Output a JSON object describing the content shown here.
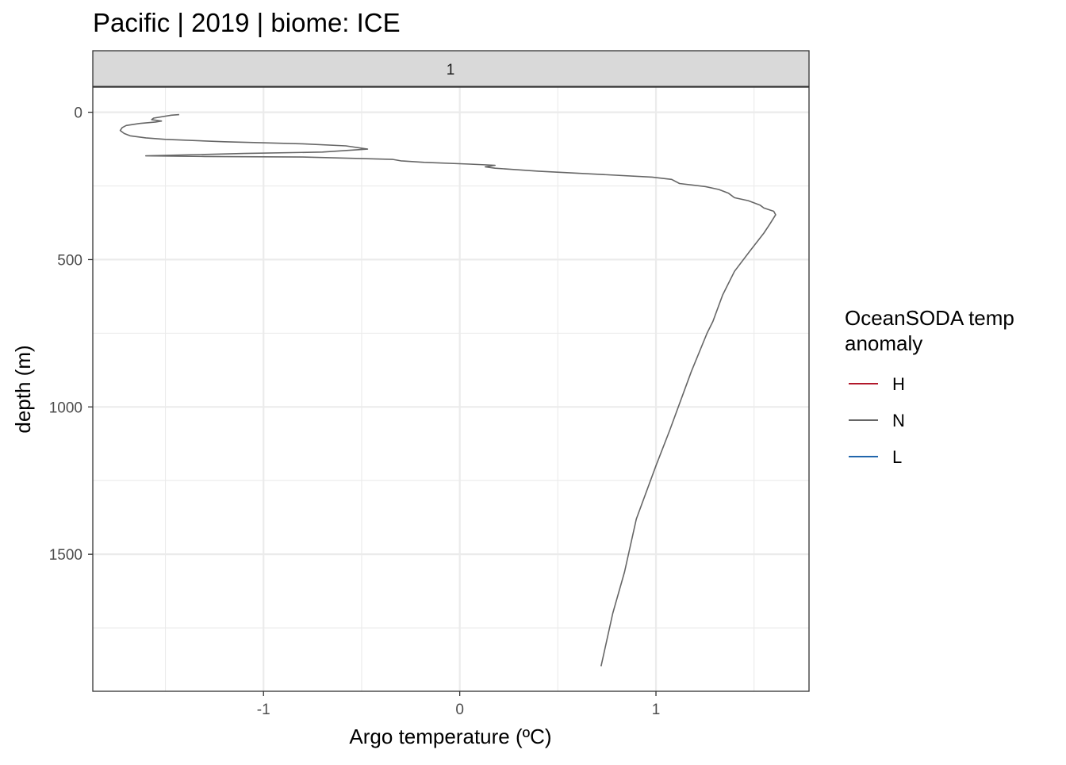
{
  "chart_data": {
    "type": "line",
    "title": "Pacific | 2019 | biome: ICE",
    "facet_label": "1",
    "xlabel": "Argo temperature (ºC)",
    "ylabel": "depth (m)",
    "xlim": [
      -1.87,
      1.78
    ],
    "ylim": [
      -85,
      1965
    ],
    "y_reversed": true,
    "grid": true,
    "x_ticks": [
      -1,
      0,
      1
    ],
    "x_tick_labels": [
      "-1",
      "0",
      "1"
    ],
    "y_ticks": [
      0,
      500,
      1000,
      1500
    ],
    "y_tick_labels": [
      "0",
      "500",
      "1000",
      "1500"
    ],
    "legend": {
      "title_lines": [
        "OceanSODA temp",
        "anomaly"
      ],
      "position": "right",
      "entries": [
        {
          "label": "H",
          "color": "#b2182b"
        },
        {
          "label": "N",
          "color": "#666666"
        },
        {
          "label": "L",
          "color": "#2166ac"
        }
      ]
    },
    "series": [
      {
        "name": "N",
        "color": "#666666",
        "points": [
          [
            -1.43,
            8
          ],
          [
            -1.47,
            10
          ],
          [
            -1.56,
            20
          ],
          [
            -1.57,
            25
          ],
          [
            -1.52,
            30
          ],
          [
            -1.55,
            33
          ],
          [
            -1.63,
            38
          ],
          [
            -1.7,
            45
          ],
          [
            -1.72,
            52
          ],
          [
            -1.73,
            62
          ],
          [
            -1.71,
            72
          ],
          [
            -1.68,
            80
          ],
          [
            -1.6,
            87
          ],
          [
            -1.5,
            92
          ],
          [
            -1.2,
            100
          ],
          [
            -0.8,
            107
          ],
          [
            -0.58,
            114
          ],
          [
            -0.47,
            125
          ],
          [
            -0.7,
            135
          ],
          [
            -1.1,
            140
          ],
          [
            -1.6,
            148
          ],
          [
            -1.3,
            150
          ],
          [
            -0.8,
            152
          ],
          [
            -0.34,
            160
          ],
          [
            -0.3,
            165
          ],
          [
            -0.18,
            170
          ],
          [
            0.05,
            176
          ],
          [
            0.18,
            180
          ],
          [
            0.13,
            185
          ],
          [
            0.18,
            190
          ],
          [
            0.4,
            200
          ],
          [
            0.98,
            220
          ],
          [
            1.08,
            228
          ],
          [
            1.12,
            242
          ],
          [
            1.25,
            252
          ],
          [
            1.32,
            262
          ],
          [
            1.37,
            275
          ],
          [
            1.4,
            290
          ],
          [
            1.47,
            300
          ],
          [
            1.53,
            315
          ],
          [
            1.55,
            325
          ],
          [
            1.6,
            336
          ],
          [
            1.61,
            348
          ],
          [
            1.58,
            380
          ],
          [
            1.55,
            410
          ],
          [
            1.48,
            470
          ],
          [
            1.4,
            540
          ],
          [
            1.34,
            620
          ],
          [
            1.29,
            710
          ],
          [
            1.26,
            750
          ],
          [
            1.18,
            880
          ],
          [
            1.07,
            1080
          ],
          [
            1.0,
            1200
          ],
          [
            0.9,
            1380
          ],
          [
            0.84,
            1560
          ],
          [
            0.78,
            1700
          ],
          [
            0.72,
            1880
          ]
        ]
      }
    ]
  }
}
